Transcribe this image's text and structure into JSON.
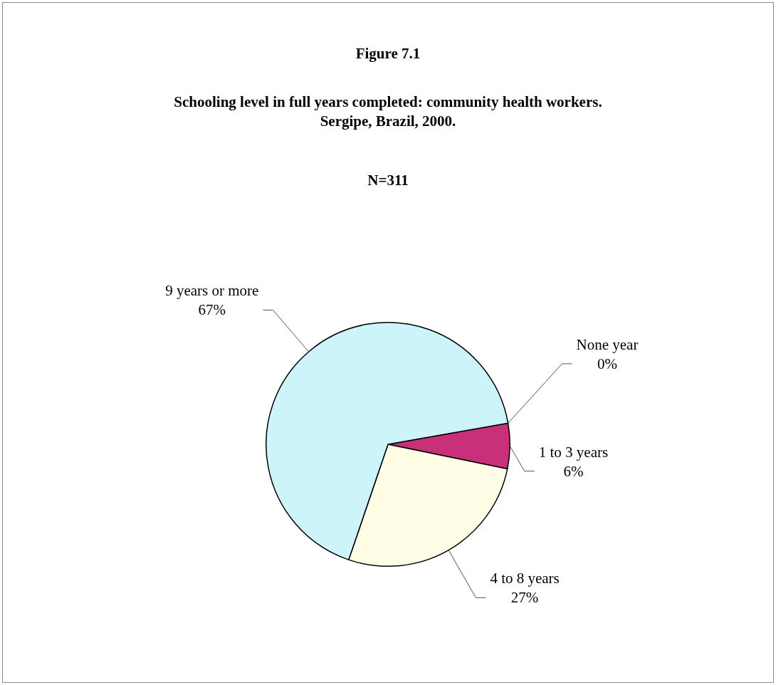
{
  "chart_data": {
    "type": "pie",
    "title": "Figure 7.1",
    "subtitle": "Schooling level in full years completed: community health workers.\nSergipe, Brazil, 2000.",
    "annotations": [
      "N=311"
    ],
    "categories": [
      "None year",
      "1 to 3 years",
      "4 to 8 years",
      "9 years or more"
    ],
    "values": [
      0,
      6,
      27,
      67
    ],
    "value_labels": [
      "0%",
      "6%",
      "27%",
      "67%"
    ],
    "colors": [
      "#c8307a",
      "#c8307a",
      "#fffde6",
      "#cdf3fb"
    ],
    "legend": false
  }
}
